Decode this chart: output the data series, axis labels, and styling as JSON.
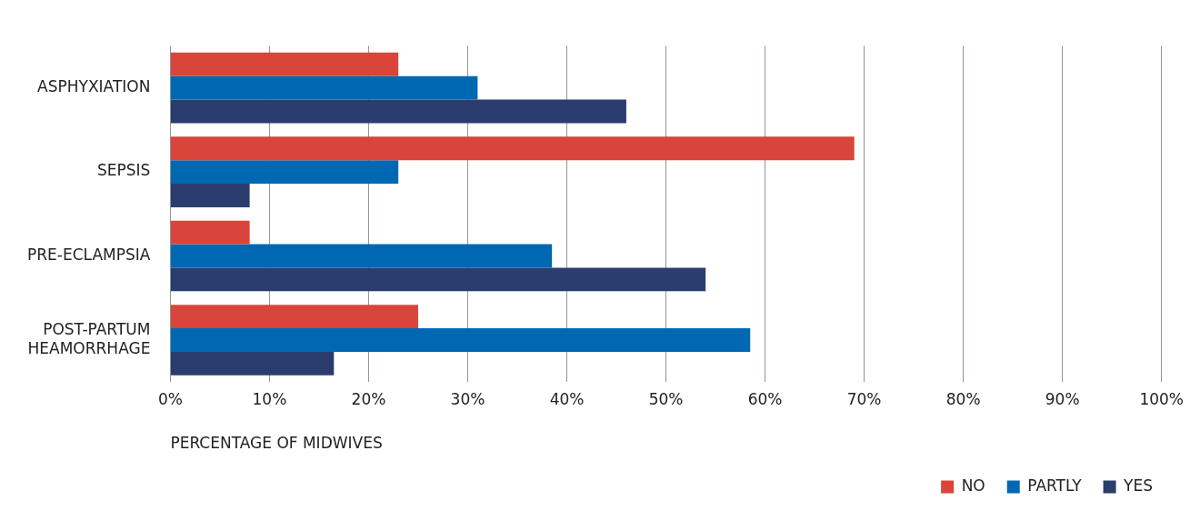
{
  "chart_data": {
    "type": "bar",
    "orientation": "horizontal",
    "xlabel": "PERCENTAGE OF MIDWIVES",
    "categories": [
      "ASPHYXIATION",
      "SEPSIS",
      "PRE-ECLAMPSIA",
      "POST-PARTUM HEAMORRHAGE"
    ],
    "series": [
      {
        "name": "NO",
        "color": "#d9453a",
        "values": [
          23,
          69,
          8,
          25
        ]
      },
      {
        "name": "PARTLY",
        "color": "#0068b3",
        "values": [
          31,
          23,
          38.5,
          58.5
        ]
      },
      {
        "name": "YES",
        "color": "#2a3d6e",
        "values": [
          46,
          8,
          54,
          16.5
        ]
      }
    ],
    "xlim": [
      0,
      100
    ],
    "xticks": [
      {
        "value": 0,
        "label": "0%"
      },
      {
        "value": 10,
        "label": "10%"
      },
      {
        "value": 20,
        "label": "20%"
      },
      {
        "value": 30,
        "label": "30%"
      },
      {
        "value": 40,
        "label": "40%"
      },
      {
        "value": 50,
        "label": "50%"
      },
      {
        "value": 60,
        "label": "60%"
      },
      {
        "value": 70,
        "label": "70%"
      },
      {
        "value": 80,
        "label": "80%"
      },
      {
        "value": 90,
        "label": "90%"
      },
      {
        "value": 100,
        "label": "100%"
      }
    ],
    "grid": "x",
    "legend": "bottom right"
  }
}
